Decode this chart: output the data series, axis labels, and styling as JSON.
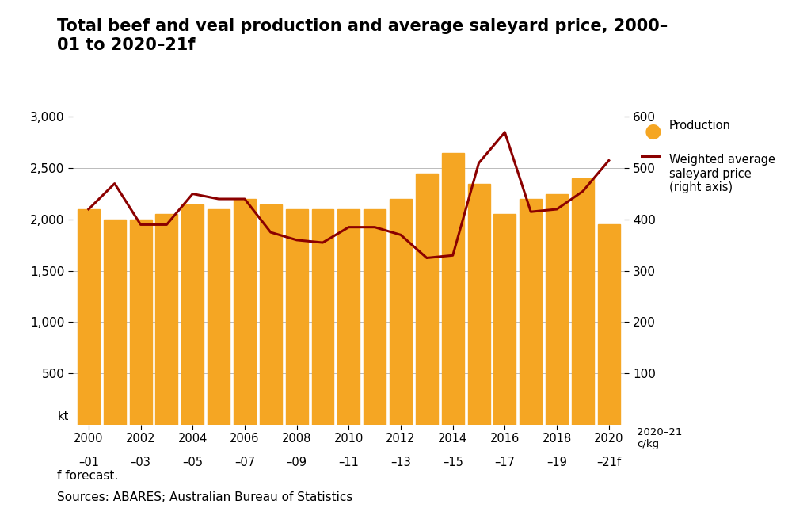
{
  "title_line1": "Total beef and veal production and average saleyard price, 2000–",
  "title_line2": "01 to 2020–21f",
  "production_all": [
    2100,
    2000,
    2000,
    2050,
    2150,
    2100,
    2200,
    2150,
    2100,
    2100,
    2100,
    2100,
    2200,
    2450,
    2650,
    2350,
    2050,
    2200,
    2250,
    2400,
    1950
  ],
  "price_all": [
    420,
    470,
    390,
    390,
    450,
    440,
    440,
    375,
    360,
    355,
    385,
    385,
    370,
    325,
    330,
    510,
    570,
    415,
    420,
    455,
    515
  ],
  "bar_color": "#F5A623",
  "line_color": "#8B0000",
  "background_color": "#FFFFFF",
  "ylim_left": [
    0,
    3000
  ],
  "ylim_right": [
    0,
    600
  ],
  "yticks_left": [
    500,
    1000,
    1500,
    2000,
    2500,
    3000
  ],
  "yticks_right": [
    100,
    200,
    300,
    400,
    500,
    600
  ],
  "ylabel_left": "kt",
  "ylabel_right": "2020–21\nc/kg",
  "xtick_top": [
    "2000",
    "2002",
    "2004",
    "2006",
    "2008",
    "2010",
    "2012",
    "2014",
    "2016",
    "2018",
    "2020"
  ],
  "xtick_bot": [
    "–01",
    "–03",
    "–05",
    "–07",
    "–09",
    "–11",
    "–13",
    "–15",
    "–17",
    "–19",
    "–21f"
  ],
  "legend_production": "Production",
  "legend_price": "Weighted average\nsaleyard price\n(right axis)",
  "footnote": "f forecast.",
  "source": "Sources: ABARES; Australian Bureau of Statistics"
}
